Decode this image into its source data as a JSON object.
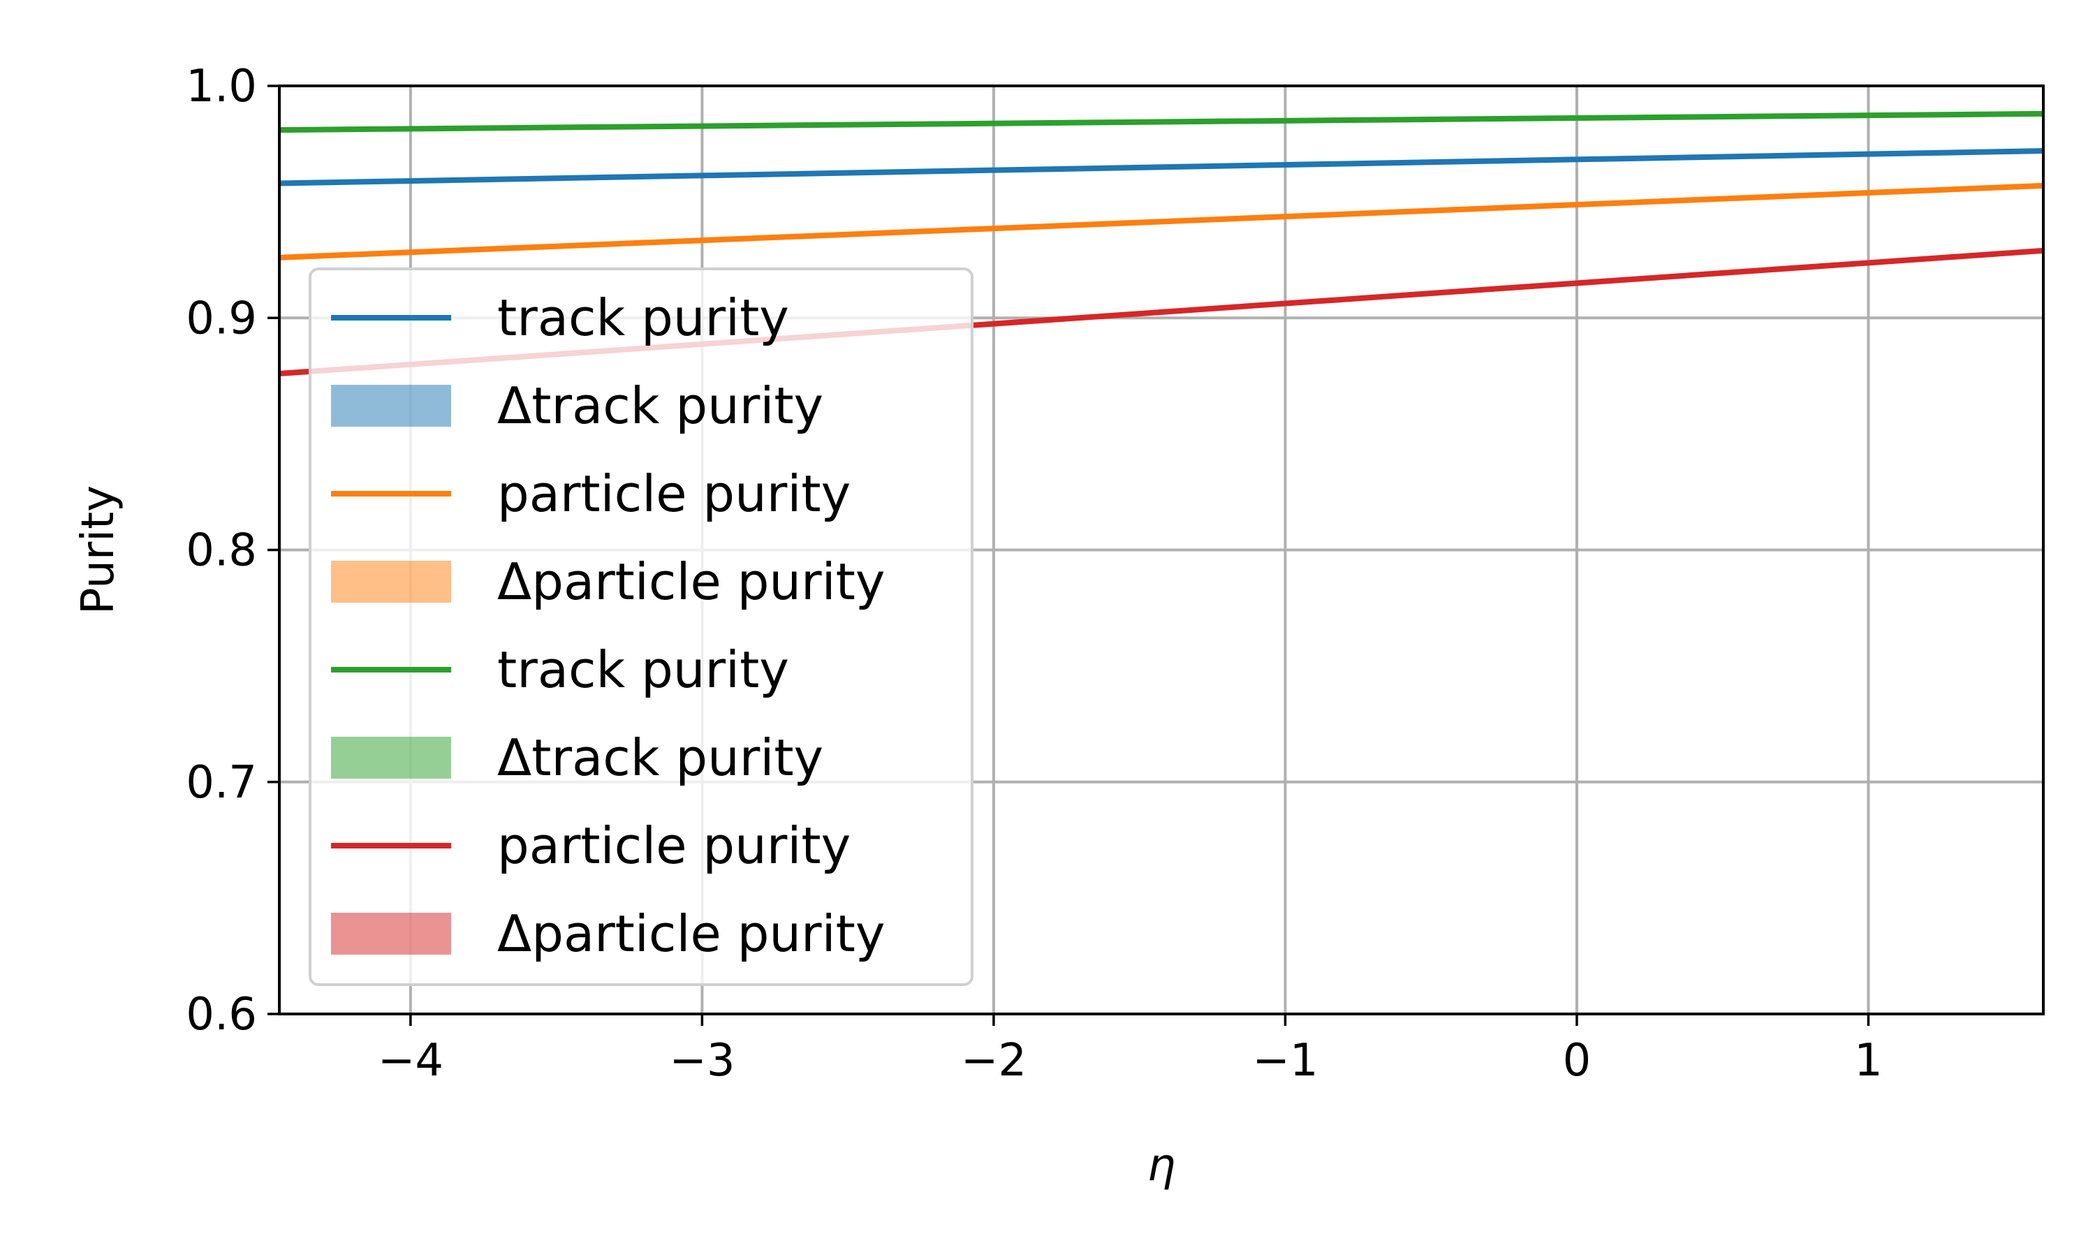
{
  "chart_data": {
    "type": "line",
    "title": "",
    "xlabel": "η",
    "ylabel": "Purity",
    "xlim": [
      -4.45,
      1.6
    ],
    "ylim": [
      0.6,
      1.0
    ],
    "xticks": [
      -4,
      -3,
      -2,
      -1,
      0,
      1
    ],
    "xtick_labels": [
      "−4",
      "−3",
      "−2",
      "−1",
      "0",
      "1"
    ],
    "yticks": [
      0.6,
      0.7,
      0.8,
      0.9,
      1.0
    ],
    "ytick_labels": [
      "0.6",
      "0.7",
      "0.8",
      "0.9",
      "1.0"
    ],
    "grid": true,
    "legend_position": "lower-left",
    "series": [
      {
        "name": "track purity",
        "kind": "line",
        "color": "#1f77b4",
        "x": [
          -4.45,
          1.6
        ],
        "y": [
          0.958,
          0.972
        ]
      },
      {
        "name": "Δtrack purity",
        "kind": "band",
        "color": "#1f77b4"
      },
      {
        "name": "particle purity",
        "kind": "line",
        "color": "#ff7f0e",
        "x": [
          -4.45,
          1.6
        ],
        "y": [
          0.926,
          0.957
        ]
      },
      {
        "name": "Δparticle purity",
        "kind": "band",
        "color": "#ff7f0e"
      },
      {
        "name": "track purity",
        "kind": "line",
        "color": "#2ca02c",
        "x": [
          -4.45,
          1.6
        ],
        "y": [
          0.981,
          0.988
        ]
      },
      {
        "name": "Δtrack purity",
        "kind": "band",
        "color": "#2ca02c"
      },
      {
        "name": "particle purity",
        "kind": "line",
        "color": "#d62728",
        "x": [
          -4.45,
          1.6
        ],
        "y": [
          0.876,
          0.929
        ]
      },
      {
        "name": "Δparticle purity",
        "kind": "band",
        "color": "#d62728"
      }
    ]
  }
}
